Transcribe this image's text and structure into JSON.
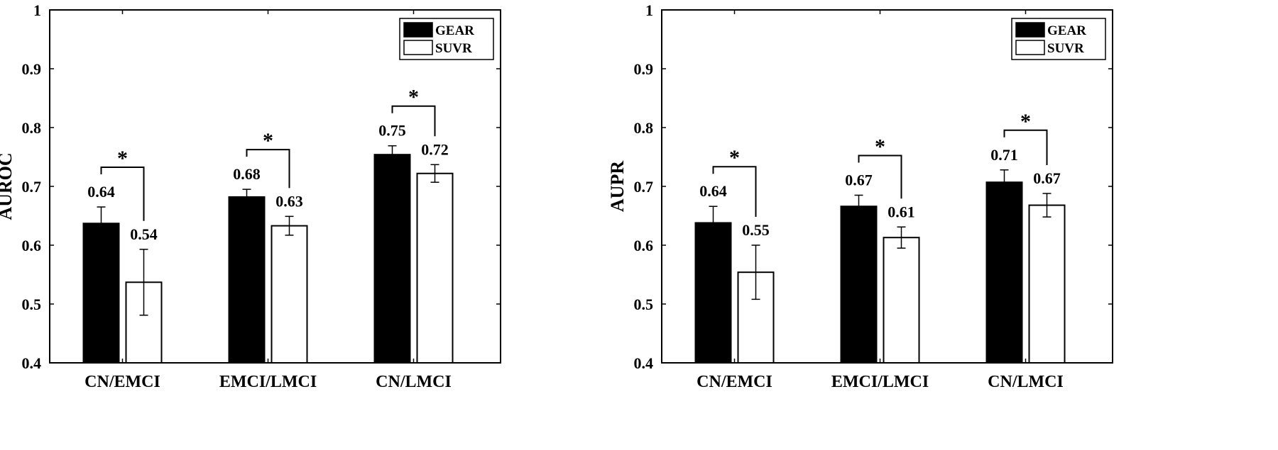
{
  "chart_data": [
    {
      "type": "bar",
      "ylabel": "AUROC",
      "xlabel": "",
      "categories": [
        "CN/EMCI",
        "EMCI/LMCI",
        "CN/LMCI"
      ],
      "ylim": [
        0.4,
        1
      ],
      "yticks": [
        "0.4",
        "0.5",
        "0.6",
        "0.7",
        "0.8",
        "0.9",
        "1"
      ],
      "series": [
        {
          "name": "GEAR",
          "fill": "#000000",
          "values": [
            0.637,
            0.682,
            0.754
          ],
          "errors": [
            0.028,
            0.013,
            0.015
          ],
          "labels": [
            "0.64",
            "0.68",
            "0.75"
          ]
        },
        {
          "name": "SUVR",
          "fill": "#ffffff",
          "values": [
            0.537,
            0.633,
            0.722
          ],
          "errors": [
            0.056,
            0.016,
            0.015
          ],
          "labels": [
            "0.54",
            "0.63",
            "0.72"
          ]
        }
      ],
      "significance": [
        "*",
        "*",
        "*"
      ],
      "legend_position": "top-right",
      "grid": false
    },
    {
      "type": "bar",
      "ylabel": "AUPR",
      "xlabel": "",
      "categories": [
        "CN/EMCI",
        "EMCI/LMCI",
        "CN/LMCI"
      ],
      "ylim": [
        0.4,
        1
      ],
      "yticks": [
        "0.4",
        "0.5",
        "0.6",
        "0.7",
        "0.8",
        "0.9",
        "1"
      ],
      "series": [
        {
          "name": "GEAR",
          "fill": "#000000",
          "values": [
            0.638,
            0.666,
            0.707
          ],
          "errors": [
            0.028,
            0.019,
            0.021
          ],
          "labels": [
            "0.64",
            "0.67",
            "0.71"
          ]
        },
        {
          "name": "SUVR",
          "fill": "#ffffff",
          "values": [
            0.554,
            0.613,
            0.668
          ],
          "errors": [
            0.046,
            0.018,
            0.02
          ],
          "labels": [
            "0.55",
            "0.61",
            "0.67"
          ]
        }
      ],
      "significance": [
        "*",
        "*",
        "*"
      ],
      "legend_position": "top-right",
      "grid": false
    }
  ]
}
